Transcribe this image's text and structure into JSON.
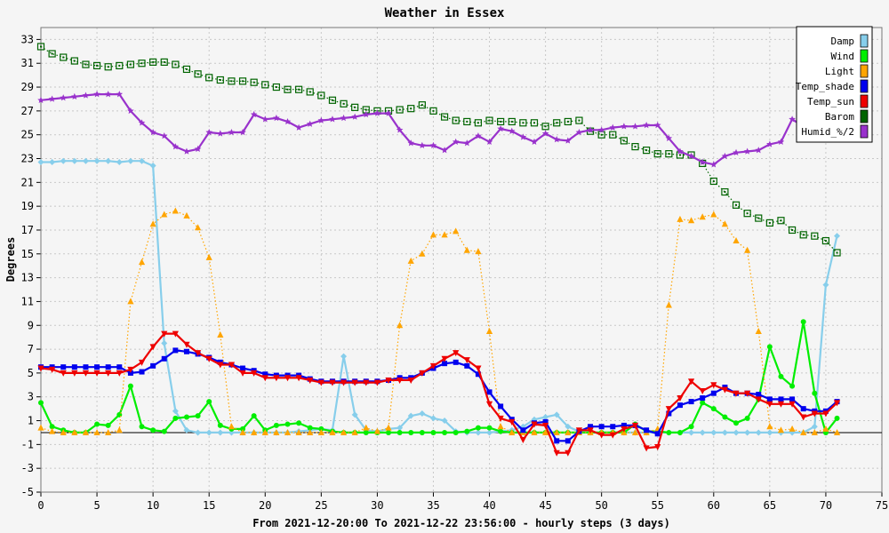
{
  "chart_data": {
    "type": "line",
    "title": "Weather in Essex",
    "xlabel": "From 2021-12-20:00 To 2021-12-22 23:56:00 - hourly steps (3 days)",
    "ylabel": "Degrees",
    "xlim": [
      0,
      75
    ],
    "ylim": [
      -5,
      34
    ],
    "x_ticks": [
      0,
      5,
      10,
      15,
      20,
      25,
      30,
      35,
      40,
      45,
      50,
      55,
      60,
      65,
      70,
      75
    ],
    "y_ticks": [
      -5,
      -3,
      -1,
      1,
      3,
      5,
      7,
      9,
      11,
      13,
      15,
      17,
      19,
      21,
      23,
      25,
      27,
      29,
      31,
      33
    ],
    "grid": true,
    "legend_position": "top-right",
    "x": [
      0,
      1,
      2,
      3,
      4,
      5,
      6,
      7,
      8,
      9,
      10,
      11,
      12,
      13,
      14,
      15,
      16,
      17,
      18,
      19,
      20,
      21,
      22,
      23,
      24,
      25,
      26,
      27,
      28,
      29,
      30,
      31,
      32,
      33,
      34,
      35,
      36,
      37,
      38,
      39,
      40,
      41,
      42,
      43,
      44,
      45,
      46,
      47,
      48,
      49,
      50,
      51,
      52,
      53,
      54,
      55,
      56,
      57,
      58,
      59,
      60,
      61,
      62,
      63,
      64,
      65,
      66,
      67,
      68,
      69,
      70,
      71
    ],
    "series": [
      {
        "name": "Damp",
        "color": "#87ceeb",
        "marker": "diamond",
        "style": "solid",
        "values": [
          22.7,
          22.7,
          22.8,
          22.8,
          22.8,
          22.8,
          22.8,
          22.7,
          22.8,
          22.8,
          22.4,
          7.5,
          1.8,
          0.2,
          0,
          0,
          0,
          0,
          0,
          0,
          0,
          0,
          0,
          0.1,
          0.2,
          0.3,
          0.2,
          6.4,
          1.5,
          0.2,
          0.1,
          0.3,
          0.4,
          1.4,
          1.6,
          1.2,
          1.0,
          0.1,
          0,
          0,
          0,
          0.1,
          0.2,
          0.5,
          1.1,
          1.3,
          1.5,
          0.5,
          0.1,
          0,
          0,
          0,
          0,
          0,
          0,
          0,
          0,
          0,
          0,
          0,
          0,
          0,
          0,
          0,
          0,
          0,
          0,
          0,
          0,
          0.5,
          12.4,
          16.5
        ]
      },
      {
        "name": "Wind",
        "color": "#00ee00",
        "marker": "circle",
        "style": "solid",
        "values": [
          2.5,
          0.5,
          0.2,
          0,
          0,
          0.7,
          0.6,
          1.5,
          3.9,
          0.5,
          0.2,
          0.1,
          1.2,
          1.3,
          1.4,
          2.6,
          0.6,
          0.3,
          0.3,
          1.4,
          0.2,
          0.6,
          0.7,
          0.8,
          0.4,
          0.3,
          0.1,
          0,
          0,
          0,
          0,
          0,
          0,
          0,
          0,
          0,
          0,
          0,
          0.1,
          0.4,
          0.4,
          0.1,
          0,
          0,
          0,
          0,
          0,
          0,
          0,
          0,
          0,
          0,
          0,
          0.7,
          0.1,
          0.1,
          0,
          0,
          0.5,
          2.5,
          2.0,
          1.3,
          0.8,
          1.2,
          2.8,
          7.2,
          4.7,
          3.9,
          9.3,
          3.3,
          0,
          1.2
        ]
      },
      {
        "name": "Light",
        "color": "#ffa500",
        "marker": "triangle",
        "style": "dotted",
        "values": [
          0.4,
          0.1,
          0,
          0,
          0,
          0,
          0,
          0.2,
          11.0,
          14.3,
          17.5,
          18.3,
          18.6,
          18.2,
          17.2,
          14.7,
          8.2,
          0.5,
          0,
          0,
          0,
          0,
          0,
          0,
          0,
          0,
          0,
          0,
          0,
          0.4,
          0.1,
          0.4,
          9.0,
          14.4,
          15.0,
          16.6,
          16.6,
          16.9,
          15.3,
          15.2,
          8.5,
          0.5,
          0,
          0,
          0,
          0,
          0,
          0,
          0,
          0,
          0,
          0,
          0,
          0,
          0,
          0.3,
          10.7,
          17.9,
          17.8,
          18.1,
          18.3,
          17.5,
          16.1,
          15.3,
          8.5,
          0.5,
          0.2,
          0.3,
          0,
          0,
          0.3,
          0
        ]
      },
      {
        "name": "Temp_shade",
        "color": "#0000ee",
        "marker": "square",
        "style": "solid",
        "values": [
          5.5,
          5.5,
          5.5,
          5.5,
          5.5,
          5.5,
          5.5,
          5.5,
          5.0,
          5.1,
          5.6,
          6.2,
          6.9,
          6.8,
          6.6,
          6.3,
          5.9,
          5.7,
          5.4,
          5.2,
          4.9,
          4.8,
          4.8,
          4.8,
          4.5,
          4.3,
          4.3,
          4.3,
          4.3,
          4.3,
          4.3,
          4.4,
          4.6,
          4.6,
          5.0,
          5.4,
          5.8,
          5.9,
          5.6,
          4.9,
          3.4,
          2.2,
          1.1,
          0.2,
          0.8,
          0.9,
          -0.7,
          -0.7,
          0.1,
          0.5,
          0.5,
          0.5,
          0.6,
          0.6,
          0.2,
          -0.1,
          1.6,
          2.3,
          2.6,
          2.9,
          3.3,
          3.8,
          3.3,
          3.3,
          3.2,
          2.8,
          2.8,
          2.8,
          2.0,
          1.8,
          1.8,
          2.6
        ]
      },
      {
        "name": "Temp_sun",
        "color": "#ee0000",
        "marker": "triangle-down",
        "style": "solid",
        "values": [
          5.4,
          5.3,
          5.0,
          5.0,
          5.0,
          5.0,
          5.0,
          5.0,
          5.3,
          5.9,
          7.2,
          8.3,
          8.3,
          7.4,
          6.7,
          6.2,
          5.7,
          5.7,
          5.0,
          5.0,
          4.6,
          4.6,
          4.6,
          4.6,
          4.4,
          4.2,
          4.2,
          4.2,
          4.2,
          4.2,
          4.2,
          4.4,
          4.4,
          4.4,
          5.0,
          5.6,
          6.2,
          6.7,
          6.1,
          5.4,
          2.4,
          1.2,
          0.9,
          -0.6,
          0.7,
          0.6,
          -1.7,
          -1.7,
          0.2,
          0.2,
          -0.2,
          -0.2,
          0.3,
          0.6,
          -1.3,
          -1.2,
          2.0,
          2.9,
          4.3,
          3.5,
          4.0,
          3.6,
          3.3,
          3.3,
          2.8,
          2.4,
          2.4,
          2.4,
          1.3,
          1.6,
          1.6,
          2.5
        ]
      },
      {
        "name": "Barom",
        "color": "#006400",
        "marker": "open-square",
        "style": "dotted",
        "values": [
          32.4,
          31.8,
          31.5,
          31.2,
          30.9,
          30.8,
          30.7,
          30.8,
          30.9,
          31.0,
          31.1,
          31.1,
          30.9,
          30.5,
          30.1,
          29.8,
          29.6,
          29.5,
          29.5,
          29.4,
          29.2,
          29.0,
          28.8,
          28.8,
          28.6,
          28.3,
          27.9,
          27.6,
          27.3,
          27.1,
          27.0,
          27.0,
          27.1,
          27.2,
          27.5,
          27.0,
          26.5,
          26.2,
          26.1,
          26.0,
          26.2,
          26.1,
          26.1,
          26.0,
          26.0,
          25.7,
          26.0,
          26.1,
          26.2,
          25.3,
          25.0,
          25.0,
          24.5,
          24.0,
          23.7,
          23.4,
          23.4,
          23.3,
          23.3,
          22.6,
          21.1,
          20.2,
          19.1,
          18.4,
          18.0,
          17.6,
          17.8,
          17.0,
          16.6,
          16.5,
          16.1,
          15.1
        ]
      },
      {
        "name": "Humid_%/2",
        "color": "#9932cc",
        "marker": "star",
        "style": "solid",
        "values": [
          27.9,
          28.0,
          28.1,
          28.2,
          28.3,
          28.4,
          28.4,
          28.4,
          27.0,
          26.0,
          25.2,
          24.9,
          24.0,
          23.6,
          23.8,
          25.2,
          25.1,
          25.2,
          25.2,
          26.7,
          26.3,
          26.4,
          26.1,
          25.6,
          25.9,
          26.2,
          26.3,
          26.4,
          26.5,
          26.7,
          26.8,
          26.8,
          25.4,
          24.3,
          24.1,
          24.1,
          23.7,
          24.4,
          24.3,
          24.9,
          24.4,
          25.5,
          25.3,
          24.8,
          24.4,
          25.1,
          24.6,
          24.5,
          25.2,
          25.4,
          25.4,
          25.6,
          25.7,
          25.7,
          25.8,
          25.8,
          24.7,
          23.6,
          23.2,
          22.7,
          22.5,
          23.2,
          23.5,
          23.6,
          23.7,
          24.2,
          24.4,
          26.3,
          25.7,
          25.6,
          25.5,
          25.3
        ]
      }
    ]
  }
}
